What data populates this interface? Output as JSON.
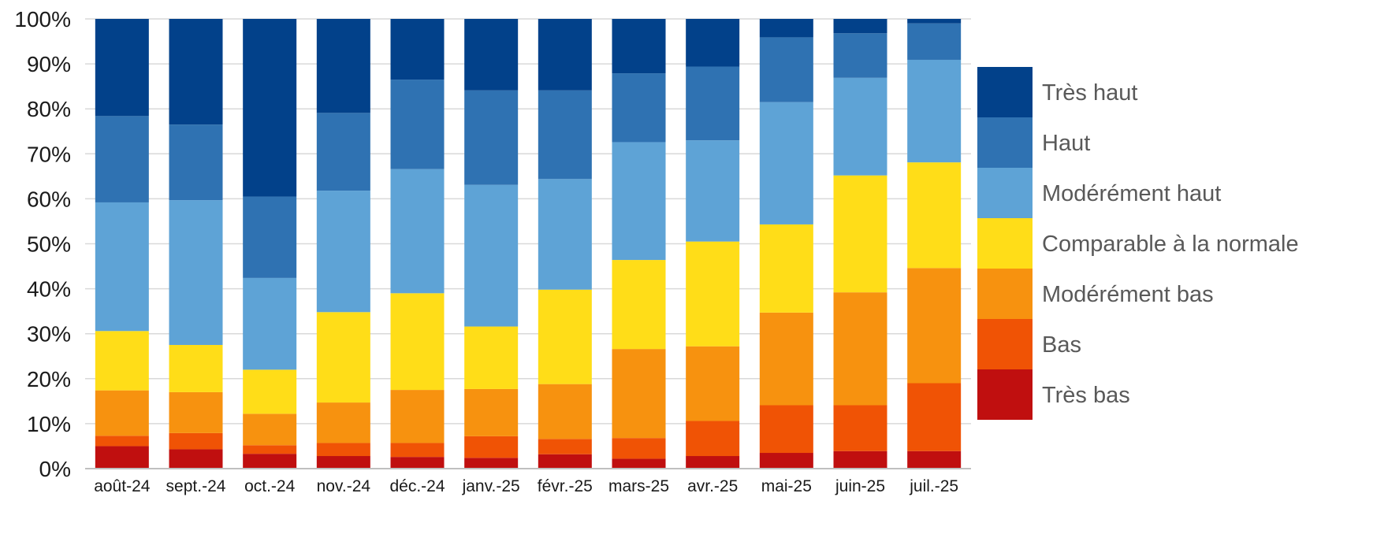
{
  "chart_data": {
    "type": "bar",
    "stacked": true,
    "percent": true,
    "categories": [
      "août-24",
      "sept.-24",
      "oct.-24",
      "nov.-24",
      "déc.-24",
      "janv.-25",
      "févr.-25",
      "mars-25",
      "avr.-25",
      "mai-25",
      "juin-25",
      "juil.-25"
    ],
    "ylim": [
      0,
      100
    ],
    "yticks": [
      "0%",
      "10%",
      "20%",
      "30%",
      "40%",
      "50%",
      "60%",
      "70%",
      "80%",
      "90%",
      "100%"
    ],
    "grid": true,
    "legend_position": "right",
    "series": [
      {
        "name": "Très bas",
        "color": "#c00f0f",
        "values": [
          5.0,
          4.3,
          3.3,
          2.8,
          2.6,
          2.4,
          3.2,
          2.2,
          2.8,
          3.5,
          3.9,
          3.9
        ]
      },
      {
        "name": "Bas",
        "color": "#f05305",
        "values": [
          2.3,
          3.6,
          1.9,
          2.9,
          3.1,
          4.8,
          3.4,
          4.6,
          7.8,
          10.6,
          10.2,
          15.1
        ]
      },
      {
        "name": "Modérément bas",
        "color": "#f7920f",
        "values": [
          10.1,
          9.1,
          7.0,
          9.0,
          11.8,
          10.5,
          12.2,
          19.8,
          16.6,
          20.6,
          25.1,
          25.6
        ]
      },
      {
        "name": "Comparable à la normale",
        "color": "#ffdd18",
        "values": [
          13.2,
          10.5,
          9.8,
          20.1,
          21.5,
          13.9,
          21.0,
          19.8,
          23.3,
          19.6,
          26.0,
          23.5
        ]
      },
      {
        "name": "Modérément haut",
        "color": "#5ea3d6",
        "values": [
          28.6,
          32.2,
          20.4,
          27.0,
          27.6,
          31.5,
          24.6,
          26.2,
          22.5,
          27.2,
          21.7,
          22.8
        ]
      },
      {
        "name": "Haut",
        "color": "#2f72b2",
        "values": [
          19.2,
          16.8,
          18.1,
          17.3,
          19.9,
          21.0,
          19.7,
          15.3,
          16.4,
          14.4,
          9.9,
          8.1
        ]
      },
      {
        "name": "Très haut",
        "color": "#02418a",
        "values": [
          21.6,
          23.5,
          39.5,
          20.9,
          13.5,
          15.9,
          15.9,
          12.1,
          10.6,
          4.1,
          3.2,
          1.0
        ]
      }
    ],
    "legend": [
      {
        "label": "Très haut",
        "color": "#02418a"
      },
      {
        "label": "Haut",
        "color": "#2f72b2"
      },
      {
        "label": "Modérément haut",
        "color": "#5ea3d6"
      },
      {
        "label": "Comparable à la normale",
        "color": "#ffdd18"
      },
      {
        "label": "Modérément bas",
        "color": "#f7920f"
      },
      {
        "label": "Bas",
        "color": "#f05305"
      },
      {
        "label": "Très bas",
        "color": "#c00f0f"
      }
    ]
  }
}
